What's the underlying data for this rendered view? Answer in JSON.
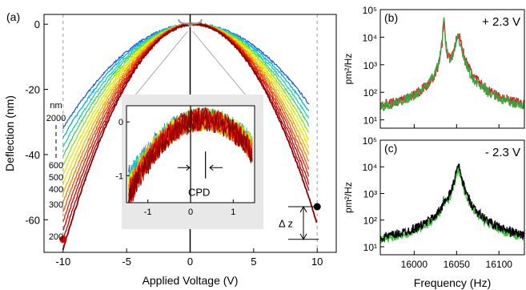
{
  "chart_data": [
    {
      "panel": "(a)",
      "type": "line",
      "xlabel": "Applied Voltage (V)",
      "ylabel": "Deflection (nm)",
      "xlim": [
        -11.5,
        11.5
      ],
      "ylim": [
        -70,
        3
      ],
      "xticks": [
        -10,
        -5,
        0,
        5,
        10
      ],
      "yticks": [
        0,
        -20,
        -40,
        -60
      ],
      "grid": false,
      "series_label_title": "nm",
      "series_labels": [
        "2000",
        "600",
        "500",
        "400",
        "300",
        "200"
      ],
      "series_colors": [
        "#2060e0",
        "#00b0f0",
        "#20d0b0",
        "#40d060",
        "#90e020",
        "#d0f000",
        "#f0e000",
        "#f0b000",
        "#f08000",
        "#f05000",
        "#e82000",
        "#d00000",
        "#b00000",
        "#8a0000"
      ],
      "series": [
        {
          "name": "2000",
          "curvature": 0.3,
          "v0": 0.2
        },
        {
          "name": "600",
          "curvature": 0.4,
          "v0": 0.3
        },
        {
          "name": "500",
          "curvature": 0.46,
          "v0": 0.3
        },
        {
          "name": "400",
          "curvature": 0.52,
          "v0": 0.35
        },
        {
          "name": "300",
          "curvature": 0.58,
          "v0": 0.4
        },
        {
          "name": "200",
          "curvature": 0.64,
          "v0": 0.4
        }
      ],
      "endpoints": [
        {
          "label": "red",
          "x": -10,
          "y": -66,
          "color": "#e00000"
        },
        {
          "label": "black",
          "x": 10,
          "y": -56,
          "color": "#000000"
        }
      ],
      "annotation_dz": "Δ z",
      "inset": {
        "xlim": [
          -1.5,
          1.5
        ],
        "ylim": [
          -1.5,
          0.3
        ],
        "xticks": [
          -1,
          0,
          1
        ],
        "yticks": [
          0,
          -1
        ],
        "annotation": "CPD"
      }
    },
    {
      "panel": "(b)",
      "type": "line",
      "label": "+ 2.3 V",
      "xlabel": "",
      "ylabel": "pm²/Hz",
      "yscale": "log",
      "ylim": [
        5,
        100000
      ],
      "yticks": [
        "10¹",
        "10²",
        "10³",
        "10⁴",
        "10⁵"
      ],
      "xlim": [
        15960,
        16130
      ],
      "series": [
        {
          "color": "#e02020",
          "peaks": [
            {
              "x": 16035,
              "y": 40000
            },
            {
              "x": 16052,
              "y": 12000
            }
          ],
          "baseline": 13
        },
        {
          "color": "#40a040",
          "peaks": [
            {
              "x": 16035,
              "y": 50000
            },
            {
              "x": 16052,
              "y": 9000
            }
          ],
          "baseline": 12
        }
      ]
    },
    {
      "panel": "(c)",
      "type": "line",
      "label": "- 2.3 V",
      "xlabel": "Frequency (Hz)",
      "ylabel": "pm²/Hz",
      "yscale": "log",
      "ylim": [
        5,
        100000
      ],
      "yticks": [
        "10¹",
        "10²",
        "10³",
        "10⁴",
        "10⁵"
      ],
      "xlim": [
        15960,
        16130
      ],
      "xticks": [
        16000,
        16050,
        16100
      ],
      "series": [
        {
          "color": "#40c040",
          "peaks": [
            {
              "x": 16035,
              "y": 400
            },
            {
              "x": 16052,
              "y": 8000
            }
          ],
          "baseline": 10
        },
        {
          "color": "#000000",
          "peaks": [
            {
              "x": 16035,
              "y": 300
            },
            {
              "x": 16052,
              "y": 10000
            }
          ],
          "baseline": 10
        }
      ]
    }
  ]
}
